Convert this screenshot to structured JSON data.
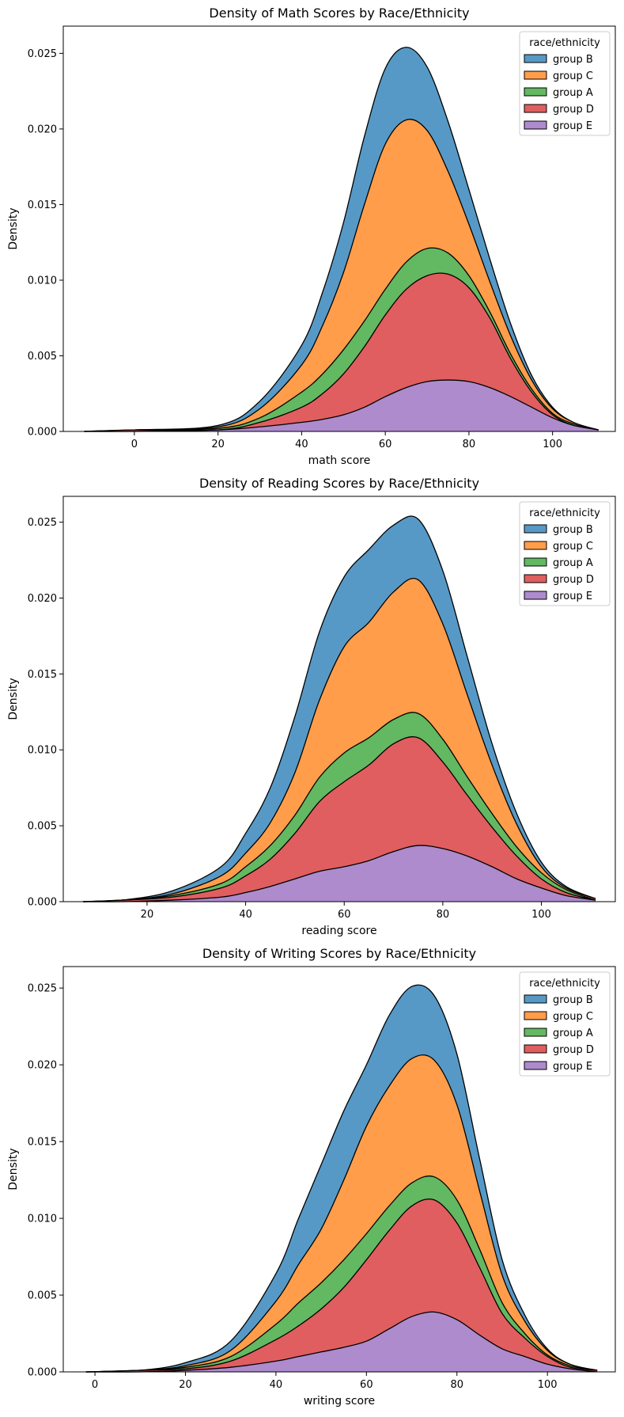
{
  "colors": {
    "group B": "#5799c6",
    "group C": "#ff9d4b",
    "group A": "#63b862",
    "group D": "#e05e5f",
    "group E": "#ad8bcc"
  },
  "chart_data": [
    {
      "type": "area",
      "stacking": "stacked",
      "title": "Density of Math Scores by Race/Ethnicity",
      "xlabel": "math score",
      "ylabel": "Density",
      "xlim": [
        -17,
        115
      ],
      "ylim": [
        0,
        0.0268
      ],
      "xticks": [
        0,
        20,
        40,
        60,
        80,
        100
      ],
      "xtick_labels": [
        "0",
        "20",
        "40",
        "60",
        "80",
        "100"
      ],
      "yticks": [
        0,
        0.005,
        0.01,
        0.015,
        0.02,
        0.025
      ],
      "ytick_labels": [
        "0.000",
        "0.005",
        "0.010",
        "0.015",
        "0.020",
        "0.025"
      ],
      "legend": {
        "title": "race/ethnicity",
        "entries": [
          "group B",
          "group C",
          "group A",
          "group D",
          "group E"
        ],
        "position": "top-right"
      },
      "x": [
        -12,
        0,
        20,
        30,
        40,
        45,
        50,
        55,
        60,
        65,
        70,
        75,
        80,
        85,
        90,
        95,
        100,
        105,
        111
      ],
      "series": [
        {
          "name": "group E",
          "cumulative": [
            0,
            0,
            0.0001,
            0.0003,
            0.0006,
            0.0008,
            0.0011,
            0.0016,
            0.0023,
            0.0029,
            0.0033,
            0.0034,
            0.0033,
            0.0029,
            0.0023,
            0.0016,
            0.0009,
            0.0004,
            0.0001
          ]
        },
        {
          "name": "group D",
          "cumulative": [
            0,
            0.0001,
            0.0001,
            0.0006,
            0.0016,
            0.0025,
            0.0038,
            0.0056,
            0.0077,
            0.0094,
            0.0103,
            0.0104,
            0.0095,
            0.0075,
            0.0048,
            0.0026,
            0.0011,
            0.0004,
            0.0001
          ]
        },
        {
          "name": "group A",
          "cumulative": [
            0,
            0.0001,
            0.0002,
            0.0009,
            0.0026,
            0.0038,
            0.0054,
            0.0073,
            0.0094,
            0.0112,
            0.0121,
            0.0118,
            0.0103,
            0.0079,
            0.0051,
            0.0028,
            0.0012,
            0.0005,
            0.0001
          ]
        },
        {
          "name": "group C",
          "cumulative": [
            0,
            0.0001,
            0.0003,
            0.0015,
            0.0044,
            0.007,
            0.0105,
            0.015,
            0.019,
            0.0206,
            0.0199,
            0.0172,
            0.0137,
            0.0099,
            0.0063,
            0.0034,
            0.0015,
            0.0006,
            0.0001
          ]
        },
        {
          "name": "group B",
          "cumulative": [
            0,
            0.0001,
            0.0004,
            0.002,
            0.0057,
            0.0092,
            0.0138,
            0.0195,
            0.024,
            0.0254,
            0.0241,
            0.0205,
            0.016,
            0.0114,
            0.0071,
            0.0037,
            0.0016,
            0.0006,
            0.0001
          ]
        }
      ]
    },
    {
      "type": "area",
      "stacking": "stacked",
      "title": "Density of Reading Scores by Race/Ethnicity",
      "xlabel": "reading score",
      "ylabel": "Density",
      "xlim": [
        3,
        115
      ],
      "ylim": [
        0,
        0.0267
      ],
      "xticks": [
        20,
        40,
        60,
        80,
        100
      ],
      "xtick_labels": [
        "20",
        "40",
        "60",
        "80",
        "100"
      ],
      "yticks": [
        0,
        0.005,
        0.01,
        0.015,
        0.02,
        0.025
      ],
      "ytick_labels": [
        "0.000",
        "0.005",
        "0.010",
        "0.015",
        "0.020",
        "0.025"
      ],
      "legend": {
        "title": "race/ethnicity",
        "entries": [
          "group B",
          "group C",
          "group A",
          "group D",
          "group E"
        ],
        "position": "top-right"
      },
      "x": [
        7,
        15,
        25,
        35,
        40,
        45,
        50,
        55,
        60,
        65,
        70,
        75,
        80,
        85,
        90,
        95,
        100,
        105,
        111
      ],
      "series": [
        {
          "name": "group E",
          "cumulative": [
            0,
            0,
            0.0001,
            0.0003,
            0.0006,
            0.001,
            0.0015,
            0.002,
            0.0023,
            0.0027,
            0.0033,
            0.0037,
            0.0035,
            0.003,
            0.0023,
            0.0015,
            0.0009,
            0.0004,
            0.0001
          ]
        },
        {
          "name": "group D",
          "cumulative": [
            0,
            0.0001,
            0.0003,
            0.0009,
            0.0017,
            0.0028,
            0.0045,
            0.0066,
            0.0079,
            0.009,
            0.0104,
            0.0108,
            0.0092,
            0.007,
            0.0049,
            0.003,
            0.0015,
            0.0006,
            0.0001
          ]
        },
        {
          "name": "group A",
          "cumulative": [
            0,
            0.0001,
            0.0004,
            0.0012,
            0.0023,
            0.0037,
            0.0057,
            0.0082,
            0.0098,
            0.0108,
            0.012,
            0.0124,
            0.0107,
            0.0082,
            0.0058,
            0.0036,
            0.0019,
            0.0008,
            0.0001
          ]
        },
        {
          "name": "group C",
          "cumulative": [
            0,
            0.0001,
            0.0005,
            0.0017,
            0.0032,
            0.0052,
            0.0085,
            0.0133,
            0.0168,
            0.0184,
            0.0204,
            0.0212,
            0.0183,
            0.0136,
            0.009,
            0.0051,
            0.0023,
            0.0009,
            0.0002
          ]
        },
        {
          "name": "group B",
          "cumulative": [
            0,
            0.0001,
            0.0007,
            0.0023,
            0.0045,
            0.0075,
            0.0122,
            0.0178,
            0.0214,
            0.0232,
            0.0248,
            0.0252,
            0.0218,
            0.0161,
            0.0104,
            0.0058,
            0.0026,
            0.001,
            0.0002
          ]
        }
      ]
    },
    {
      "type": "area",
      "stacking": "stacked",
      "title": "Density of Writing Scores by Race/Ethnicity",
      "xlabel": "writing score",
      "ylabel": "Density",
      "xlim": [
        -7,
        115
      ],
      "ylim": [
        0,
        0.0264
      ],
      "xticks": [
        0,
        20,
        40,
        60,
        80,
        100
      ],
      "xtick_labels": [
        "0",
        "20",
        "40",
        "60",
        "80",
        "100"
      ],
      "yticks": [
        0,
        0.005,
        0.01,
        0.015,
        0.02,
        0.025
      ],
      "ytick_labels": [
        "0.000",
        "0.005",
        "0.010",
        "0.015",
        "0.020",
        "0.025"
      ],
      "legend": {
        "title": "race/ethnicity",
        "entries": [
          "group B",
          "group C",
          "group A",
          "group D",
          "group E"
        ],
        "position": "top-right"
      },
      "x": [
        -2,
        10,
        20,
        30,
        40,
        45,
        50,
        55,
        60,
        65,
        70,
        75,
        80,
        85,
        90,
        95,
        100,
        105,
        111
      ],
      "series": [
        {
          "name": "group E",
          "cumulative": [
            0,
            0,
            0.0001,
            0.0003,
            0.0007,
            0.001,
            0.0013,
            0.0016,
            0.002,
            0.0028,
            0.0036,
            0.0039,
            0.0034,
            0.0024,
            0.0015,
            0.001,
            0.0005,
            0.0002,
            0
          ]
        },
        {
          "name": "group D",
          "cumulative": [
            0,
            0.0001,
            0.0002,
            0.0007,
            0.0021,
            0.003,
            0.0041,
            0.0055,
            0.0073,
            0.0092,
            0.0108,
            0.0112,
            0.0097,
            0.0068,
            0.0038,
            0.0022,
            0.001,
            0.0003,
            0.0001
          ]
        },
        {
          "name": "group A",
          "cumulative": [
            0,
            0.0001,
            0.0003,
            0.001,
            0.0031,
            0.0045,
            0.0058,
            0.0073,
            0.009,
            0.0108,
            0.0123,
            0.0127,
            0.0112,
            0.008,
            0.0045,
            0.0025,
            0.0011,
            0.0004,
            0.0001
          ]
        },
        {
          "name": "group C",
          "cumulative": [
            0,
            0.0001,
            0.0004,
            0.0014,
            0.0046,
            0.007,
            0.0093,
            0.0125,
            0.016,
            0.0186,
            0.0204,
            0.0203,
            0.0174,
            0.0118,
            0.0063,
            0.0033,
            0.0014,
            0.0005,
            0.0001
          ]
        },
        {
          "name": "group B",
          "cumulative": [
            0,
            0.0001,
            0.0006,
            0.002,
            0.0064,
            0.01,
            0.0135,
            0.017,
            0.02,
            0.0232,
            0.0251,
            0.0245,
            0.0207,
            0.0139,
            0.0073,
            0.0037,
            0.0015,
            0.0005,
            0.0001
          ]
        }
      ]
    }
  ]
}
